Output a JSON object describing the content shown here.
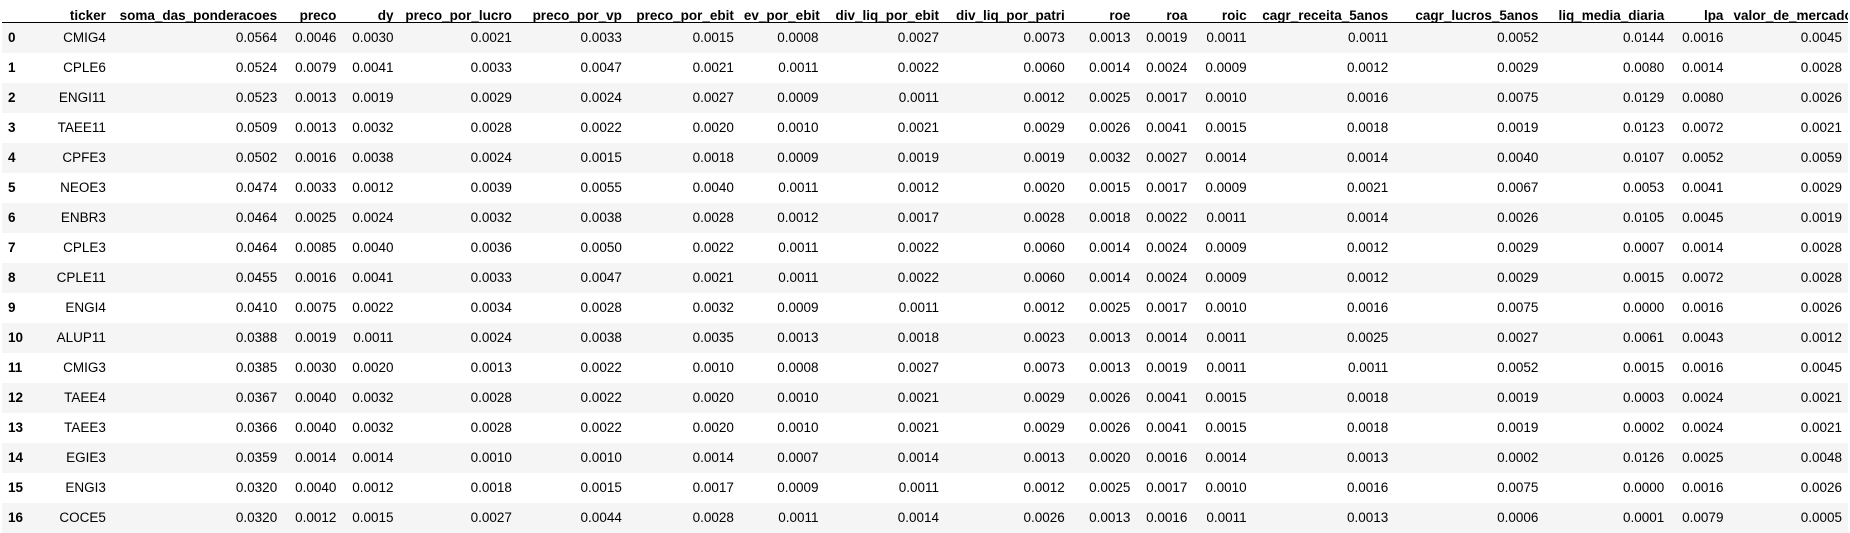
{
  "table": {
    "index_header": "",
    "columns": [
      "ticker",
      "soma_das_ponderacoes",
      "preco",
      "dy",
      "preco_por_lucro",
      "preco_por_vp",
      "preco_por_ebit",
      "ev_por_ebit",
      "div_liq_por_ebit",
      "div_liq_por_patri",
      "roe",
      "roa",
      "roic",
      "cagr_receita_5anos",
      "cagr_lucros_5anos",
      "liq_media_diaria",
      "lpa",
      "valor_de_mercado"
    ],
    "rows": [
      {
        "index": "0",
        "cells": [
          "CMIG4",
          "0.0564",
          "0.0046",
          "0.0030",
          "0.0021",
          "0.0033",
          "0.0015",
          "0.0008",
          "0.0027",
          "0.0073",
          "0.0013",
          "0.0019",
          "0.0011",
          "0.0011",
          "0.0052",
          "0.0144",
          "0.0016",
          "0.0045"
        ]
      },
      {
        "index": "1",
        "cells": [
          "CPLE6",
          "0.0524",
          "0.0079",
          "0.0041",
          "0.0033",
          "0.0047",
          "0.0021",
          "0.0011",
          "0.0022",
          "0.0060",
          "0.0014",
          "0.0024",
          "0.0009",
          "0.0012",
          "0.0029",
          "0.0080",
          "0.0014",
          "0.0028"
        ]
      },
      {
        "index": "2",
        "cells": [
          "ENGI11",
          "0.0523",
          "0.0013",
          "0.0019",
          "0.0029",
          "0.0024",
          "0.0027",
          "0.0009",
          "0.0011",
          "0.0012",
          "0.0025",
          "0.0017",
          "0.0010",
          "0.0016",
          "0.0075",
          "0.0129",
          "0.0080",
          "0.0026"
        ]
      },
      {
        "index": "3",
        "cells": [
          "TAEE11",
          "0.0509",
          "0.0013",
          "0.0032",
          "0.0028",
          "0.0022",
          "0.0020",
          "0.0010",
          "0.0021",
          "0.0029",
          "0.0026",
          "0.0041",
          "0.0015",
          "0.0018",
          "0.0019",
          "0.0123",
          "0.0072",
          "0.0021"
        ]
      },
      {
        "index": "4",
        "cells": [
          "CPFE3",
          "0.0502",
          "0.0016",
          "0.0038",
          "0.0024",
          "0.0015",
          "0.0018",
          "0.0009",
          "0.0019",
          "0.0019",
          "0.0032",
          "0.0027",
          "0.0014",
          "0.0014",
          "0.0040",
          "0.0107",
          "0.0052",
          "0.0059"
        ]
      },
      {
        "index": "5",
        "cells": [
          "NEOE3",
          "0.0474",
          "0.0033",
          "0.0012",
          "0.0039",
          "0.0055",
          "0.0040",
          "0.0011",
          "0.0012",
          "0.0020",
          "0.0015",
          "0.0017",
          "0.0009",
          "0.0021",
          "0.0067",
          "0.0053",
          "0.0041",
          "0.0029"
        ]
      },
      {
        "index": "6",
        "cells": [
          "ENBR3",
          "0.0464",
          "0.0025",
          "0.0024",
          "0.0032",
          "0.0038",
          "0.0028",
          "0.0012",
          "0.0017",
          "0.0028",
          "0.0018",
          "0.0022",
          "0.0011",
          "0.0014",
          "0.0026",
          "0.0105",
          "0.0045",
          "0.0019"
        ]
      },
      {
        "index": "7",
        "cells": [
          "CPLE3",
          "0.0464",
          "0.0085",
          "0.0040",
          "0.0036",
          "0.0050",
          "0.0022",
          "0.0011",
          "0.0022",
          "0.0060",
          "0.0014",
          "0.0024",
          "0.0009",
          "0.0012",
          "0.0029",
          "0.0007",
          "0.0014",
          "0.0028"
        ]
      },
      {
        "index": "8",
        "cells": [
          "CPLE11",
          "0.0455",
          "0.0016",
          "0.0041",
          "0.0033",
          "0.0047",
          "0.0021",
          "0.0011",
          "0.0022",
          "0.0060",
          "0.0014",
          "0.0024",
          "0.0009",
          "0.0012",
          "0.0029",
          "0.0015",
          "0.0072",
          "0.0028"
        ]
      },
      {
        "index": "9",
        "cells": [
          "ENGI4",
          "0.0410",
          "0.0075",
          "0.0022",
          "0.0034",
          "0.0028",
          "0.0032",
          "0.0009",
          "0.0011",
          "0.0012",
          "0.0025",
          "0.0017",
          "0.0010",
          "0.0016",
          "0.0075",
          "0.0000",
          "0.0016",
          "0.0026"
        ]
      },
      {
        "index": "10",
        "cells": [
          "ALUP11",
          "0.0388",
          "0.0019",
          "0.0011",
          "0.0024",
          "0.0038",
          "0.0035",
          "0.0013",
          "0.0018",
          "0.0023",
          "0.0013",
          "0.0014",
          "0.0011",
          "0.0025",
          "0.0027",
          "0.0061",
          "0.0043",
          "0.0012"
        ]
      },
      {
        "index": "11",
        "cells": [
          "CMIG3",
          "0.0385",
          "0.0030",
          "0.0020",
          "0.0013",
          "0.0022",
          "0.0010",
          "0.0008",
          "0.0027",
          "0.0073",
          "0.0013",
          "0.0019",
          "0.0011",
          "0.0011",
          "0.0052",
          "0.0015",
          "0.0016",
          "0.0045"
        ]
      },
      {
        "index": "12",
        "cells": [
          "TAEE4",
          "0.0367",
          "0.0040",
          "0.0032",
          "0.0028",
          "0.0022",
          "0.0020",
          "0.0010",
          "0.0021",
          "0.0029",
          "0.0026",
          "0.0041",
          "0.0015",
          "0.0018",
          "0.0019",
          "0.0003",
          "0.0024",
          "0.0021"
        ]
      },
      {
        "index": "13",
        "cells": [
          "TAEE3",
          "0.0366",
          "0.0040",
          "0.0032",
          "0.0028",
          "0.0022",
          "0.0020",
          "0.0010",
          "0.0021",
          "0.0029",
          "0.0026",
          "0.0041",
          "0.0015",
          "0.0018",
          "0.0019",
          "0.0002",
          "0.0024",
          "0.0021"
        ]
      },
      {
        "index": "14",
        "cells": [
          "EGIE3",
          "0.0359",
          "0.0014",
          "0.0014",
          "0.0010",
          "0.0010",
          "0.0014",
          "0.0007",
          "0.0014",
          "0.0013",
          "0.0020",
          "0.0016",
          "0.0014",
          "0.0013",
          "0.0002",
          "0.0126",
          "0.0025",
          "0.0048"
        ]
      },
      {
        "index": "15",
        "cells": [
          "ENGI3",
          "0.0320",
          "0.0040",
          "0.0012",
          "0.0018",
          "0.0015",
          "0.0017",
          "0.0009",
          "0.0011",
          "0.0012",
          "0.0025",
          "0.0017",
          "0.0010",
          "0.0016",
          "0.0075",
          "0.0000",
          "0.0016",
          "0.0026"
        ]
      },
      {
        "index": "16",
        "cells": [
          "COCE5",
          "0.0320",
          "0.0012",
          "0.0015",
          "0.0027",
          "0.0044",
          "0.0028",
          "0.0011",
          "0.0014",
          "0.0026",
          "0.0013",
          "0.0016",
          "0.0011",
          "0.0013",
          "0.0006",
          "0.0001",
          "0.0079",
          "0.0005"
        ]
      }
    ]
  }
}
